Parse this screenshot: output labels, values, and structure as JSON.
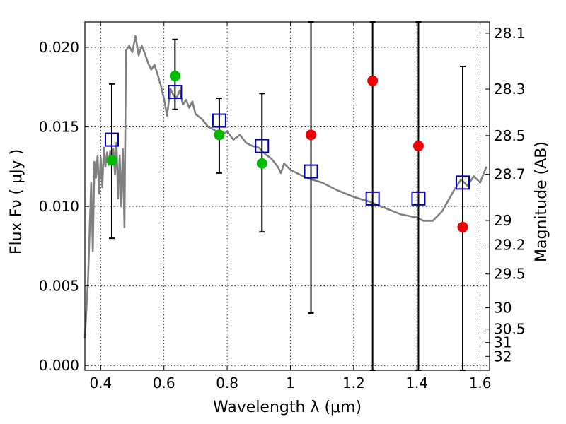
{
  "chart_data": {
    "type": "scatter",
    "xlabel": "Wavelength  λ (μm)",
    "ylabel": "Flux  Fν  ( μJy )",
    "y2label": "Magnitude (AB)",
    "xlim": [
      0.35,
      1.63
    ],
    "ylim": [
      -0.0003,
      0.0216
    ],
    "grid": true,
    "x_ticks": [
      {
        "value": 0.4,
        "label": "0.4"
      },
      {
        "value": 0.6,
        "label": "0.6"
      },
      {
        "value": 0.8,
        "label": "0.8"
      },
      {
        "value": 1.0,
        "label": "1"
      },
      {
        "value": 1.2,
        "label": "1.2"
      },
      {
        "value": 1.4,
        "label": "1.4"
      },
      {
        "value": 1.6,
        "label": "1.6"
      }
    ],
    "y_ticks": [
      {
        "value": 0.0,
        "label": "0.000"
      },
      {
        "value": 0.005,
        "label": "0.005"
      },
      {
        "value": 0.01,
        "label": "0.010"
      },
      {
        "value": 0.015,
        "label": "0.015"
      },
      {
        "value": 0.02,
        "label": "0.020"
      }
    ],
    "y2_ticks": [
      {
        "mag": 28.1,
        "label": "28.1"
      },
      {
        "mag": 28.3,
        "label": "28.3"
      },
      {
        "mag": 28.5,
        "label": "28.5"
      },
      {
        "mag": 28.7,
        "label": "28.7"
      },
      {
        "mag": 29.0,
        "label": "29"
      },
      {
        "mag": 29.2,
        "label": "29.2"
      },
      {
        "mag": 29.5,
        "label": "29.5"
      },
      {
        "mag": 30.0,
        "label": "30"
      },
      {
        "mag": 30.5,
        "label": "30.5"
      },
      {
        "mag": 31.0,
        "label": "31"
      },
      {
        "mag": 32.0,
        "label": "32"
      }
    ],
    "colors": {
      "sed": "#808080",
      "model": "#0000bb",
      "green": "#00bb00",
      "red": "#ee0000"
    },
    "sed_model": {
      "x": [
        0.35,
        0.36,
        0.37,
        0.375,
        0.38,
        0.385,
        0.39,
        0.395,
        0.4,
        0.405,
        0.41,
        0.415,
        0.42,
        0.425,
        0.43,
        0.435,
        0.44,
        0.445,
        0.45,
        0.455,
        0.46,
        0.465,
        0.47,
        0.475,
        0.48,
        0.49,
        0.5,
        0.51,
        0.52,
        0.53,
        0.54,
        0.55,
        0.56,
        0.57,
        0.58,
        0.59,
        0.6,
        0.61,
        0.62,
        0.63,
        0.64,
        0.65,
        0.66,
        0.67,
        0.68,
        0.69,
        0.7,
        0.72,
        0.74,
        0.76,
        0.78,
        0.8,
        0.82,
        0.84,
        0.86,
        0.88,
        0.9,
        0.92,
        0.94,
        0.96,
        0.97,
        0.98,
        1.0,
        1.05,
        1.1,
        1.15,
        1.2,
        1.25,
        1.3,
        1.35,
        1.4,
        1.42,
        1.45,
        1.48,
        1.5,
        1.52,
        1.54,
        1.56,
        1.58,
        1.6,
        1.62
      ],
      "y": [
        0.0017,
        0.0055,
        0.0115,
        0.0072,
        0.0128,
        0.0118,
        0.0132,
        0.0108,
        0.0131,
        0.0112,
        0.0137,
        0.0125,
        0.0134,
        0.0126,
        0.0135,
        0.0128,
        0.0136,
        0.012,
        0.014,
        0.0105,
        0.0132,
        0.01,
        0.0136,
        0.0087,
        0.0198,
        0.0201,
        0.0197,
        0.0207,
        0.0195,
        0.0201,
        0.0196,
        0.019,
        0.0186,
        0.0189,
        0.0183,
        0.0176,
        0.0168,
        0.0157,
        0.0174,
        0.017,
        0.0168,
        0.0173,
        0.0164,
        0.0167,
        0.0162,
        0.0166,
        0.0158,
        0.0155,
        0.015,
        0.0148,
        0.0145,
        0.0147,
        0.0142,
        0.0145,
        0.014,
        0.0138,
        0.0137,
        0.0133,
        0.013,
        0.0125,
        0.0121,
        0.0127,
        0.0123,
        0.0118,
        0.0115,
        0.011,
        0.0106,
        0.0103,
        0.0099,
        0.0095,
        0.0093,
        0.0091,
        0.0091,
        0.0097,
        0.0104,
        0.0111,
        0.0117,
        0.0113,
        0.0119,
        0.0115,
        0.0125
      ]
    },
    "observations": [
      {
        "x": 0.435,
        "y_model": 0.0142,
        "y_obs": 0.0129,
        "obs_color": "green",
        "err_low": 0.008,
        "err_high": 0.0177
      },
      {
        "x": 0.635,
        "y_model": 0.0172,
        "y_obs": 0.0182,
        "obs_color": "green",
        "err_low": 0.0161,
        "err_high": 0.0205
      },
      {
        "x": 0.775,
        "y_model": 0.0154,
        "y_obs": 0.0145,
        "obs_color": "green",
        "err_low": 0.0121,
        "err_high": 0.0168
      },
      {
        "x": 0.91,
        "y_model": 0.0138,
        "y_obs": 0.0127,
        "obs_color": "green",
        "err_low": 0.0084,
        "err_high": 0.0171
      },
      {
        "x": 1.065,
        "y_model": 0.0122,
        "y_obs": 0.0145,
        "obs_color": "red",
        "err_low": 0.0033,
        "err_high": 0.0216
      },
      {
        "x": 1.26,
        "y_model": 0.0105,
        "y_obs": 0.0179,
        "obs_color": "red",
        "err_low": -0.0003,
        "err_high": 0.0216
      },
      {
        "x": 1.405,
        "y_model": 0.0105,
        "y_obs": 0.0138,
        "obs_color": "red",
        "err_low": -0.0003,
        "err_high": 0.0216
      },
      {
        "x": 1.545,
        "y_model": 0.0115,
        "y_obs": 0.0087,
        "obs_color": "red",
        "err_low": -0.0003,
        "err_high": 0.0188
      }
    ]
  }
}
